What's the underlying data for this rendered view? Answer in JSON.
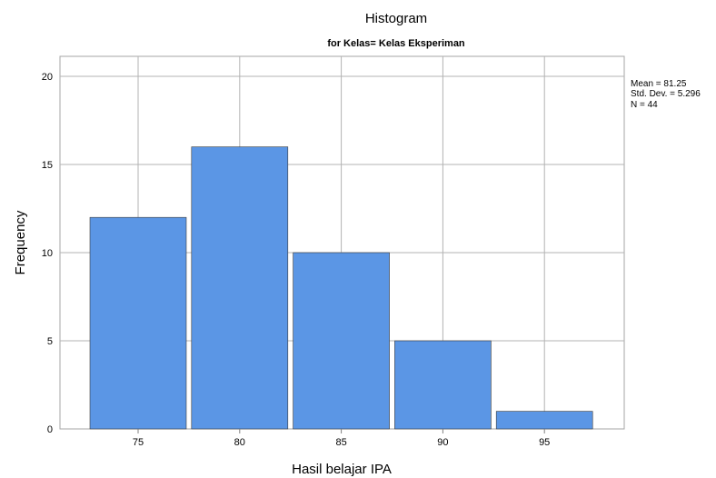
{
  "chart_data": {
    "type": "bar",
    "title": "Histogram",
    "subtitle": "for Kelas= Kelas Eksperiman",
    "xlabel": "Hasil belajar IPA",
    "ylabel": "Frequency",
    "categories": [
      "75",
      "80",
      "85",
      "90",
      "95"
    ],
    "values": [
      12,
      16,
      10,
      5,
      1
    ],
    "x_ticks": [
      "75",
      "80",
      "85",
      "90",
      "95"
    ],
    "y_ticks": [
      "0",
      "5",
      "10",
      "15",
      "20"
    ],
    "ylim": [
      0,
      20
    ],
    "grid": true,
    "bar_color": "#5b96e5",
    "stats": {
      "mean": "Mean = 81.25",
      "std": "Std. Dev. = 5.296",
      "n": "N = 44"
    }
  }
}
